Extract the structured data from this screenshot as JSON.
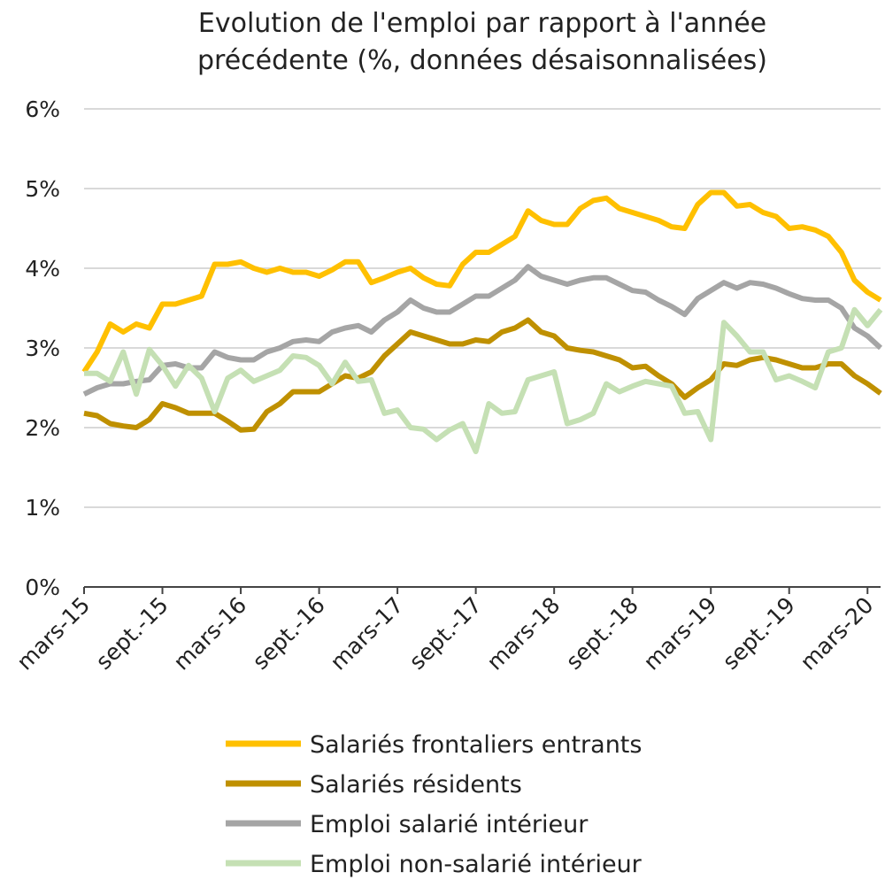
{
  "chart_data": {
    "type": "line",
    "title": "Evolution de l'emploi par rapport à l'année précédente (%, données désaisonnalisées)",
    "categories": [
      "mars-15",
      null,
      null,
      null,
      null,
      null,
      "sept.-15",
      null,
      null,
      null,
      null,
      null,
      "mars-16",
      null,
      null,
      null,
      null,
      null,
      "sept.-16",
      null,
      null,
      null,
      null,
      null,
      "mars-17",
      null,
      null,
      null,
      null,
      null,
      "sept.-17",
      null,
      null,
      null,
      null,
      null,
      "mars-18",
      null,
      null,
      null,
      null,
      null,
      "sept.-18",
      null,
      null,
      null,
      null,
      null,
      "mars-19",
      null,
      null,
      null,
      null,
      null,
      "sept.-19",
      null,
      null,
      null,
      null,
      null,
      "mars-20",
      null
    ],
    "series": [
      {
        "name": "Salariés frontaliers entrants",
        "color": "#FFC000",
        "values": [
          2.7,
          2.95,
          3.3,
          3.2,
          3.3,
          3.25,
          3.55,
          3.55,
          3.6,
          3.65,
          4.05,
          4.05,
          4.08,
          4.0,
          3.95,
          4.0,
          3.95,
          3.95,
          3.9,
          3.98,
          4.08,
          4.08,
          3.82,
          3.88,
          3.95,
          4.0,
          3.88,
          3.8,
          3.78,
          4.05,
          4.2,
          4.2,
          4.3,
          4.4,
          4.72,
          4.6,
          4.55,
          4.55,
          4.75,
          4.85,
          4.88,
          4.75,
          4.7,
          4.65,
          4.6,
          4.52,
          4.5,
          4.8,
          4.95,
          4.95,
          4.78,
          4.8,
          4.7,
          4.65,
          4.5,
          4.52,
          4.48,
          4.4,
          4.2,
          3.85,
          3.7,
          3.6
        ]
      },
      {
        "name": "Salariés résidents",
        "color": "#BF9000",
        "values": [
          2.18,
          2.15,
          2.05,
          2.02,
          2.0,
          2.1,
          2.3,
          2.25,
          2.18,
          2.18,
          2.18,
          2.08,
          1.97,
          1.98,
          2.2,
          2.3,
          2.45,
          2.45,
          2.45,
          2.55,
          2.65,
          2.62,
          2.7,
          2.9,
          3.05,
          3.2,
          3.15,
          3.1,
          3.05,
          3.05,
          3.1,
          3.08,
          3.2,
          3.25,
          3.35,
          3.2,
          3.15,
          3.0,
          2.97,
          2.95,
          2.9,
          2.85,
          2.75,
          2.77,
          2.65,
          2.55,
          2.38,
          2.5,
          2.6,
          2.8,
          2.78,
          2.85,
          2.88,
          2.85,
          2.8,
          2.75,
          2.75,
          2.8,
          2.8,
          2.65,
          2.55,
          2.43
        ]
      },
      {
        "name": "Emploi salarié intérieur",
        "color": "#A5A5A5",
        "values": [
          2.42,
          2.5,
          2.55,
          2.55,
          2.58,
          2.6,
          2.78,
          2.8,
          2.75,
          2.75,
          2.95,
          2.88,
          2.85,
          2.85,
          2.95,
          3.0,
          3.08,
          3.1,
          3.08,
          3.2,
          3.25,
          3.28,
          3.2,
          3.35,
          3.45,
          3.6,
          3.5,
          3.45,
          3.45,
          3.55,
          3.65,
          3.65,
          3.75,
          3.85,
          4.02,
          3.9,
          3.85,
          3.8,
          3.85,
          3.88,
          3.88,
          3.8,
          3.72,
          3.7,
          3.6,
          3.52,
          3.42,
          3.62,
          3.72,
          3.82,
          3.75,
          3.82,
          3.8,
          3.75,
          3.68,
          3.62,
          3.6,
          3.6,
          3.5,
          3.25,
          3.15,
          3.0
        ]
      },
      {
        "name": "Emploi non-salarié intérieur",
        "color": "#C5E0B4",
        "values": [
          2.68,
          2.68,
          2.58,
          2.95,
          2.42,
          2.98,
          2.78,
          2.52,
          2.78,
          2.62,
          2.2,
          2.62,
          2.72,
          2.58,
          2.65,
          2.72,
          2.9,
          2.88,
          2.78,
          2.55,
          2.82,
          2.58,
          2.6,
          2.18,
          2.22,
          2.0,
          1.98,
          1.85,
          1.97,
          2.05,
          1.7,
          2.3,
          2.18,
          2.2,
          2.6,
          2.65,
          2.7,
          2.05,
          2.1,
          2.18,
          2.55,
          2.45,
          2.52,
          2.58,
          2.55,
          2.52,
          2.18,
          2.2,
          1.85,
          3.32,
          3.15,
          2.95,
          2.95,
          2.6,
          2.65,
          2.58,
          2.5,
          2.95,
          3.0,
          3.48,
          3.28,
          3.48
        ]
      }
    ],
    "ylim": [
      0,
      6
    ],
    "yticks": [
      {
        "value": 0,
        "label": "0%"
      },
      {
        "value": 1,
        "label": "1%"
      },
      {
        "value": 2,
        "label": "2%"
      },
      {
        "value": 3,
        "label": "3%"
      },
      {
        "value": 4,
        "label": "4%"
      },
      {
        "value": 5,
        "label": "5%"
      },
      {
        "value": 6,
        "label": "6%"
      }
    ],
    "grid": true
  }
}
